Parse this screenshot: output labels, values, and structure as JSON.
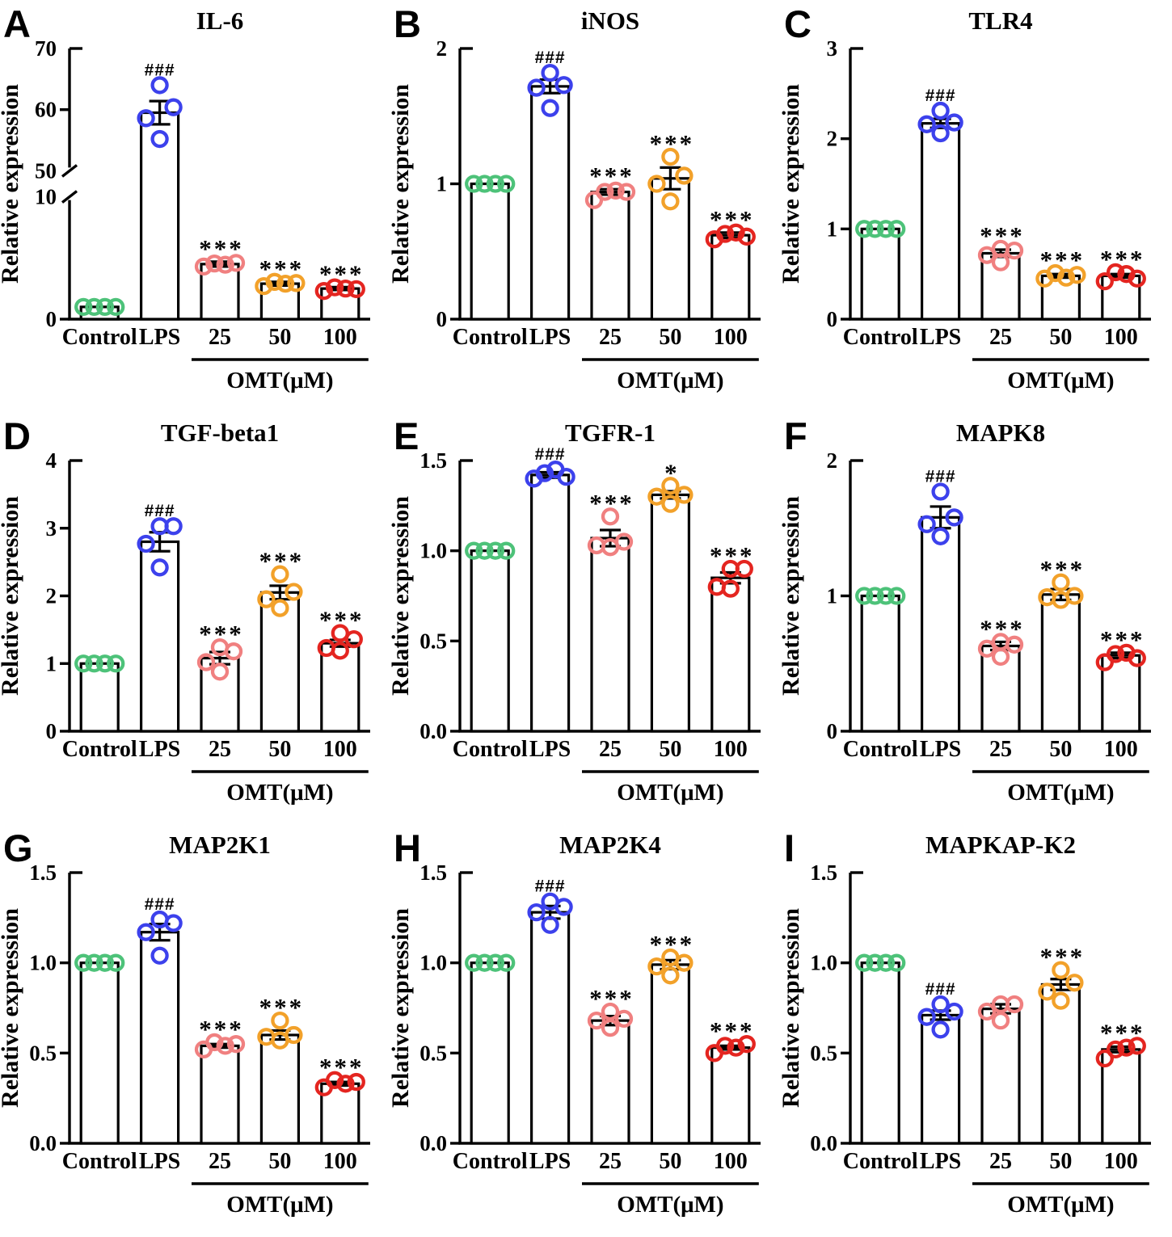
{
  "figure": {
    "ylabel": "Relative expression",
    "categories": [
      "Control",
      "LPS",
      "25",
      "50",
      "100"
    ],
    "treatment_label": "OMT(μM)",
    "treatment_span_categories": [
      "25",
      "100"
    ],
    "colors": {
      "control_point": "#4DC279",
      "lps_point": "#3C41EC",
      "omt25_point": "#F08080",
      "omt50_point": "#F2A12A",
      "omt100_point": "#E42520",
      "point_colors": [
        "#4DC279",
        "#3C41EC",
        "#F08080",
        "#F2A12A",
        "#E42520"
      ],
      "bar_fill": "#FFFFFF",
      "axis_and_text": "#000000"
    }
  },
  "chart_data": [
    {
      "type": "bar",
      "panel_letter": "A",
      "title": "IL-6",
      "ylabel": "Relative expression",
      "categories": [
        "Control",
        "LPS",
        "25",
        "50",
        "100"
      ],
      "values": [
        1.0,
        59.5,
        4.5,
        2.9,
        2.5
      ],
      "sem": [
        0,
        1.9,
        0.2,
        0.15,
        0.12
      ],
      "points": [
        [
          1.0,
          1.0,
          1.0,
          1.0
        ],
        [
          55.2,
          58.6,
          60.4,
          64.0
        ],
        [
          4.3,
          4.55,
          4.45,
          4.6
        ],
        [
          2.7,
          3.05,
          2.9,
          2.95
        ],
        [
          2.3,
          2.6,
          2.5,
          2.45
        ]
      ],
      "sig": [
        "",
        "###",
        "***",
        "***",
        "***"
      ],
      "yticks": [
        0,
        10,
        50,
        60,
        70
      ],
      "ytick_labels": [
        "0",
        "10",
        "50",
        "60",
        "70"
      ],
      "ylim": [
        0,
        70
      ],
      "axis_break": {
        "lower_max": 10,
        "upper_min": 50
      }
    },
    {
      "type": "bar",
      "panel_letter": "B",
      "title": "iNOS",
      "ylabel": "Relative expression",
      "categories": [
        "Control",
        "LPS",
        "25",
        "50",
        "100"
      ],
      "values": [
        1.0,
        1.72,
        0.94,
        1.04,
        0.62
      ],
      "sem": [
        0,
        0.05,
        0.02,
        0.08,
        0.02
      ],
      "points": [
        [
          1.0,
          1.0,
          1.0,
          1.0
        ],
        [
          1.56,
          1.71,
          1.73,
          1.82
        ],
        [
          0.88,
          0.94,
          0.95,
          0.94
        ],
        [
          0.87,
          1.0,
          1.06,
          1.2
        ],
        [
          0.59,
          0.63,
          0.64,
          0.61
        ]
      ],
      "sig": [
        "",
        "###",
        "***",
        "***",
        "***"
      ],
      "yticks": [
        0,
        1,
        2
      ],
      "ytick_labels": [
        "0",
        "1",
        "2"
      ],
      "ylim": [
        0,
        2
      ],
      "axis_break": null
    },
    {
      "type": "bar",
      "panel_letter": "C",
      "title": "TLR4",
      "ylabel": "Relative expression",
      "categories": [
        "Control",
        "LPS",
        "25",
        "50",
        "100"
      ],
      "values": [
        1.0,
        2.17,
        0.73,
        0.48,
        0.48
      ],
      "sem": [
        0,
        0.05,
        0.04,
        0.02,
        0.02
      ],
      "points": [
        [
          1.0,
          1.0,
          1.0,
          1.0
        ],
        [
          2.06,
          2.18,
          2.16,
          2.31
        ],
        [
          0.63,
          0.76,
          0.78,
          0.71
        ],
        [
          0.45,
          0.51,
          0.46,
          0.49
        ],
        [
          0.42,
          0.52,
          0.5,
          0.45
        ]
      ],
      "sig": [
        "",
        "###",
        "***",
        "***",
        "***"
      ],
      "yticks": [
        0,
        1,
        2,
        3
      ],
      "ytick_labels": [
        "0",
        "1",
        "2",
        "3"
      ],
      "ylim": [
        0,
        3
      ],
      "axis_break": null
    },
    {
      "type": "bar",
      "panel_letter": "D",
      "title": "TGF-beta1",
      "ylabel": "Relative expression",
      "categories": [
        "Control",
        "LPS",
        "25",
        "50",
        "100"
      ],
      "values": [
        1.0,
        2.8,
        1.08,
        2.05,
        1.3
      ],
      "sem": [
        0,
        0.14,
        0.09,
        0.1,
        0.05
      ],
      "points": [
        [
          1.0,
          1.0,
          1.0,
          1.0
        ],
        [
          2.42,
          2.77,
          3.03,
          3.03
        ],
        [
          0.88,
          1.02,
          1.18,
          1.24
        ],
        [
          1.82,
          1.95,
          2.06,
          2.32
        ],
        [
          1.19,
          1.23,
          1.36,
          1.45
        ]
      ],
      "sig": [
        "",
        "###",
        "***",
        "***",
        "***"
      ],
      "yticks": [
        0,
        1,
        2,
        3,
        4
      ],
      "ytick_labels": [
        "0",
        "1",
        "2",
        "3",
        "4"
      ],
      "ylim": [
        0,
        4
      ],
      "axis_break": null
    },
    {
      "type": "bar",
      "panel_letter": "E",
      "title": "TGFR-1",
      "ylabel": "Relative expression",
      "categories": [
        "Control",
        "LPS",
        "25",
        "50",
        "100"
      ],
      "values": [
        1.0,
        1.42,
        1.07,
        1.31,
        0.85
      ],
      "sem": [
        0,
        0.015,
        0.045,
        0.02,
        0.03
      ],
      "points": [
        [
          1.0,
          1.0,
          1.0,
          1.0
        ],
        [
          1.4,
          1.43,
          1.45,
          1.41
        ],
        [
          1.02,
          1.05,
          1.03,
          1.19
        ],
        [
          1.26,
          1.31,
          1.36,
          1.3
        ],
        [
          0.79,
          0.8,
          0.9,
          0.9
        ]
      ],
      "sig": [
        "",
        "###",
        "***",
        "*",
        "***"
      ],
      "yticks": [
        0,
        0.5,
        1,
        1.5
      ],
      "ytick_labels": [
        "0.0",
        "0.5",
        "1.0",
        "1.5"
      ],
      "ylim": [
        0,
        1.5
      ],
      "axis_break": null
    },
    {
      "type": "bar",
      "panel_letter": "F",
      "title": "MAPK8",
      "ylabel": "Relative expression",
      "categories": [
        "Control",
        "LPS",
        "25",
        "50",
        "100"
      ],
      "values": [
        1.0,
        1.58,
        0.63,
        1.01,
        0.56
      ],
      "sem": [
        0,
        0.08,
        0.03,
        0.04,
        0.02
      ],
      "points": [
        [
          1.0,
          1.0,
          1.0,
          1.0
        ],
        [
          1.44,
          1.53,
          1.58,
          1.77
        ],
        [
          0.55,
          0.64,
          0.66,
          0.61
        ],
        [
          0.97,
          1.0,
          0.99,
          1.1
        ],
        [
          0.51,
          0.57,
          0.58,
          0.54
        ]
      ],
      "sig": [
        "",
        "###",
        "***",
        "***",
        "***"
      ],
      "yticks": [
        0,
        1,
        2
      ],
      "ytick_labels": [
        "0",
        "1",
        "2"
      ],
      "ylim": [
        0,
        2
      ],
      "axis_break": null
    },
    {
      "type": "bar",
      "panel_letter": "G",
      "title": "MAP2K1",
      "ylabel": "Relative expression",
      "categories": [
        "Control",
        "LPS",
        "25",
        "50",
        "100"
      ],
      "values": [
        1.0,
        1.17,
        0.54,
        0.6,
        0.33
      ],
      "sem": [
        0,
        0.045,
        0.01,
        0.025,
        0.01
      ],
      "points": [
        [
          1.0,
          1.0,
          1.0,
          1.0
        ],
        [
          1.04,
          1.17,
          1.22,
          1.24
        ],
        [
          0.52,
          0.56,
          0.54,
          0.55
        ],
        [
          0.57,
          0.59,
          0.6,
          0.68
        ],
        [
          0.31,
          0.35,
          0.33,
          0.34
        ]
      ],
      "sig": [
        "",
        "###",
        "***",
        "***",
        "***"
      ],
      "yticks": [
        0,
        0.5,
        1,
        1.5
      ],
      "ytick_labels": [
        "0.0",
        "0.5",
        "1.0",
        "1.5"
      ],
      "ylim": [
        0,
        1.5
      ],
      "axis_break": null
    },
    {
      "type": "bar",
      "panel_letter": "H",
      "title": "MAP2K4",
      "ylabel": "Relative expression",
      "categories": [
        "Control",
        "LPS",
        "25",
        "50",
        "100"
      ],
      "values": [
        1.0,
        1.28,
        0.68,
        0.99,
        0.53
      ],
      "sem": [
        0,
        0.035,
        0.025,
        0.025,
        0.01
      ],
      "points": [
        [
          1.0,
          1.0,
          1.0,
          1.0
        ],
        [
          1.21,
          1.31,
          1.28,
          1.34
        ],
        [
          0.64,
          0.73,
          0.69,
          0.68
        ],
        [
          0.93,
          1.0,
          0.98,
          1.03
        ],
        [
          0.5,
          0.54,
          0.53,
          0.55
        ]
      ],
      "sig": [
        "",
        "###",
        "***",
        "***",
        "***"
      ],
      "yticks": [
        0,
        0.5,
        1,
        1.5
      ],
      "ytick_labels": [
        "0.0",
        "0.5",
        "1.0",
        "1.5"
      ],
      "ylim": [
        0,
        1.5
      ],
      "axis_break": null
    },
    {
      "type": "bar",
      "panel_letter": "I",
      "title": "MAPKAP-K2",
      "ylabel": "Relative expression",
      "categories": [
        "Control",
        "LPS",
        "25",
        "50",
        "100"
      ],
      "values": [
        1.0,
        0.71,
        0.745,
        0.88,
        0.52
      ],
      "sem": [
        0,
        0.025,
        0.025,
        0.03,
        0.015
      ],
      "points": [
        [
          1.0,
          1.0,
          1.0,
          1.0
        ],
        [
          0.63,
          0.7,
          0.73,
          0.77
        ],
        [
          0.68,
          0.73,
          0.77,
          0.77
        ],
        [
          0.79,
          0.84,
          0.89,
          0.96
        ],
        [
          0.47,
          0.52,
          0.53,
          0.54
        ]
      ],
      "sig": [
        "",
        "###",
        "",
        "***",
        "***"
      ],
      "yticks": [
        0,
        0.5,
        1,
        1.5
      ],
      "ytick_labels": [
        "0.0",
        "0.5",
        "1.0",
        "1.5"
      ],
      "ylim": [
        0,
        1.5
      ],
      "axis_break": null
    }
  ]
}
